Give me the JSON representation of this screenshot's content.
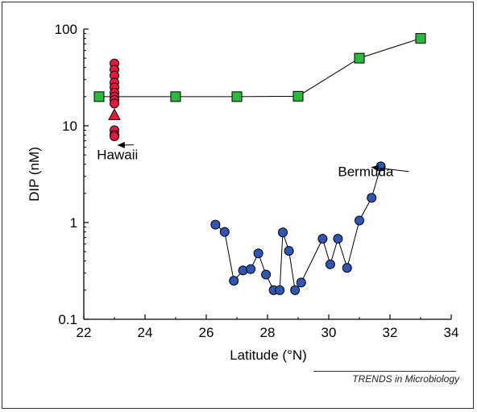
{
  "chart_data": {
    "type": "scatter",
    "xlabel": "Latitude (°N)",
    "ylabel": "DIP (nM)",
    "xlim": [
      22,
      34
    ],
    "ylim": [
      0.1,
      100
    ],
    "yscale": "log",
    "x_ticks": [
      22,
      24,
      26,
      28,
      30,
      32,
      34
    ],
    "y_ticks": [
      0.1,
      1,
      10,
      100
    ],
    "y_tick_labels": [
      "0.1",
      "1",
      "10",
      "100"
    ],
    "x_tick_labels": [
      "22",
      "24",
      "26",
      "28",
      "30",
      "32",
      "34"
    ],
    "grid": false,
    "series": [
      {
        "marker": "square",
        "color": "#2db83d",
        "connected": true,
        "x": [
          22.5,
          25,
          27,
          29,
          31,
          33
        ],
        "y": [
          20,
          20,
          20,
          20.2,
          50,
          80
        ]
      },
      {
        "marker": "circle",
        "color": "#e8173c",
        "connected": false,
        "x": [
          23,
          23,
          23,
          23,
          23,
          23,
          23,
          23,
          23,
          23,
          23,
          23
        ],
        "y": [
          44,
          38,
          33,
          28,
          25,
          22,
          20,
          18.5,
          17,
          9,
          8.1,
          7.8
        ]
      },
      {
        "marker": "triangle",
        "color": "#e8173c",
        "connected": false,
        "x": [
          23
        ],
        "y": [
          13
        ]
      },
      {
        "marker": "circle",
        "color": "#2f56b5",
        "connected": true,
        "x": [
          26.3,
          26.6,
          26.9,
          27.2,
          27.45,
          27.7,
          27.95,
          28.2,
          28.4,
          28.5,
          28.7,
          28.9,
          29.1,
          29.8,
          30.05,
          30.3,
          30.6,
          31.0,
          31.4,
          31.7
        ],
        "y": [
          0.95,
          0.8,
          0.25,
          0.32,
          0.33,
          0.48,
          0.29,
          0.2,
          0.2,
          0.79,
          0.51,
          0.2,
          0.24,
          0.68,
          0.37,
          0.68,
          0.34,
          1.05,
          1.8,
          3.8
        ]
      }
    ],
    "annotations": [
      {
        "text": "Hawaii",
        "x": 23.1,
        "y": 4.5,
        "arrow_to": [
          23.1,
          6.8
        ]
      },
      {
        "text": "Bermuda",
        "x": 30.3,
        "y": 3.0,
        "arrow_to": [
          31.6,
          3.8
        ]
      }
    ]
  },
  "source_credit": "TRENDS in Microbiology"
}
